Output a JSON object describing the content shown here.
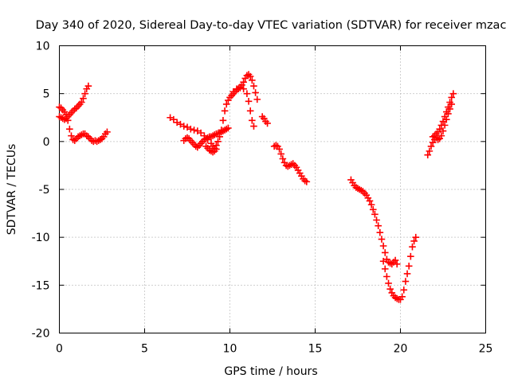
{
  "chart_data": {
    "type": "scatter",
    "title": "Day 340 of 2020, Sidereal Day-to-day VTEC variation (SDTVAR) for receiver mzac",
    "xlabel": "GPS time / hours",
    "ylabel": "SDTVAR / TECUs",
    "xlim": [
      0,
      25
    ],
    "ylim": [
      -20,
      10
    ],
    "xticks": [
      0,
      5,
      10,
      15,
      20,
      25
    ],
    "yticks": [
      -20,
      -15,
      -10,
      -5,
      0,
      5,
      10
    ],
    "xtick_labels": [
      "0",
      "5",
      "10",
      "15",
      "20",
      "25"
    ],
    "ytick_labels": [
      "-20",
      "-15",
      "-10",
      "-5",
      "0",
      "5",
      "10"
    ],
    "grid": true,
    "marker": "+",
    "series": [
      {
        "name": "mzac",
        "color": "#ff0000",
        "segments": [
          [
            [
              0.0,
              2.6
            ],
            [
              0.1,
              2.5
            ],
            [
              0.2,
              2.4
            ],
            [
              0.3,
              2.3
            ],
            [
              0.4,
              2.4
            ],
            [
              0.5,
              2.6
            ],
            [
              0.6,
              2.8
            ],
            [
              0.7,
              3.0
            ],
            [
              0.8,
              3.2
            ],
            [
              0.9,
              3.4
            ],
            [
              1.0,
              3.5
            ],
            [
              1.1,
              3.7
            ],
            [
              1.2,
              3.9
            ],
            [
              1.3,
              4.1
            ],
            [
              1.4,
              4.5
            ],
            [
              1.5,
              5.0
            ],
            [
              1.6,
              5.5
            ],
            [
              1.7,
              5.8
            ]
          ],
          [
            [
              0.0,
              3.6
            ],
            [
              0.1,
              3.5
            ],
            [
              0.2,
              3.3
            ],
            [
              0.3,
              3.1
            ],
            [
              0.4,
              2.8
            ],
            [
              0.5,
              2.2
            ],
            [
              0.6,
              1.3
            ],
            [
              0.7,
              0.6
            ],
            [
              0.8,
              0.2
            ],
            [
              0.9,
              0.1
            ],
            [
              1.0,
              0.3
            ],
            [
              1.1,
              0.5
            ],
            [
              1.2,
              0.6
            ],
            [
              1.3,
              0.7
            ],
            [
              1.4,
              0.8
            ],
            [
              1.5,
              0.8
            ],
            [
              1.6,
              0.6
            ],
            [
              1.7,
              0.5
            ],
            [
              1.8,
              0.3
            ],
            [
              1.9,
              0.1
            ],
            [
              2.0,
              0.0
            ],
            [
              2.1,
              0.1
            ],
            [
              2.2,
              0.0
            ],
            [
              2.3,
              0.1
            ],
            [
              2.4,
              0.2
            ],
            [
              2.5,
              0.3
            ],
            [
              2.6,
              0.5
            ],
            [
              2.7,
              0.8
            ],
            [
              2.8,
              1.0
            ]
          ],
          [
            [
              6.5,
              2.5
            ],
            [
              6.7,
              2.3
            ],
            [
              6.9,
              2.0
            ],
            [
              7.1,
              1.8
            ],
            [
              7.3,
              1.6
            ],
            [
              7.5,
              1.5
            ],
            [
              7.7,
              1.3
            ],
            [
              7.9,
              1.2
            ],
            [
              8.1,
              1.1
            ],
            [
              8.3,
              0.9
            ],
            [
              8.5,
              0.6
            ],
            [
              8.7,
              0.2
            ],
            [
              8.9,
              -0.2
            ],
            [
              9.0,
              -0.5
            ],
            [
              9.1,
              -0.7
            ],
            [
              9.2,
              -0.4
            ],
            [
              9.3,
              0.0
            ],
            [
              9.4,
              0.5
            ],
            [
              9.5,
              1.2
            ],
            [
              9.6,
              2.2
            ],
            [
              9.7,
              3.2
            ],
            [
              9.8,
              3.9
            ],
            [
              9.9,
              4.3
            ],
            [
              10.0,
              4.6
            ],
            [
              10.1,
              4.8
            ],
            [
              10.2,
              5.0
            ],
            [
              10.3,
              5.2
            ],
            [
              10.4,
              5.4
            ],
            [
              10.5,
              5.5
            ],
            [
              10.6,
              5.7
            ],
            [
              10.7,
              5.9
            ],
            [
              10.8,
              6.2
            ],
            [
              10.9,
              6.6
            ],
            [
              11.0,
              6.9
            ],
            [
              11.1,
              7.0
            ],
            [
              11.2,
              6.8
            ],
            [
              11.3,
              6.4
            ],
            [
              11.4,
              5.8
            ],
            [
              11.5,
              5.1
            ],
            [
              11.6,
              4.4
            ]
          ],
          [
            [
              7.3,
              0.1
            ],
            [
              7.4,
              0.3
            ],
            [
              7.5,
              0.4
            ],
            [
              7.6,
              0.3
            ],
            [
              7.7,
              0.1
            ],
            [
              7.8,
              -0.1
            ],
            [
              7.9,
              -0.3
            ],
            [
              8.0,
              -0.5
            ],
            [
              8.1,
              -0.6
            ],
            [
              8.2,
              -0.4
            ],
            [
              8.3,
              -0.2
            ],
            [
              8.4,
              0.0
            ],
            [
              8.5,
              0.2
            ],
            [
              8.6,
              0.3
            ],
            [
              8.7,
              0.4
            ],
            [
              8.8,
              0.5
            ],
            [
              8.9,
              0.5
            ],
            [
              9.0,
              0.6
            ],
            [
              9.1,
              0.7
            ],
            [
              9.2,
              0.8
            ],
            [
              9.3,
              0.8
            ],
            [
              9.4,
              0.9
            ],
            [
              9.5,
              1.0
            ],
            [
              9.6,
              1.1
            ],
            [
              9.7,
              1.2
            ],
            [
              9.8,
              1.3
            ],
            [
              9.9,
              1.4
            ]
          ],
          [
            [
              8.6,
              -0.5
            ],
            [
              8.7,
              -0.7
            ],
            [
              8.8,
              -0.9
            ],
            [
              8.9,
              -1.0
            ],
            [
              9.0,
              -1.1
            ],
            [
              9.1,
              -1.0
            ],
            [
              9.2,
              -0.8
            ]
          ],
          [
            [
              10.2,
              5.2
            ],
            [
              10.4,
              5.5
            ],
            [
              10.6,
              5.6
            ],
            [
              10.8,
              5.5
            ],
            [
              11.0,
              5.0
            ],
            [
              11.1,
              4.2
            ],
            [
              11.2,
              3.2
            ],
            [
              11.3,
              2.2
            ],
            [
              11.4,
              1.6
            ]
          ],
          [
            [
              11.9,
              2.6
            ],
            [
              12.0,
              2.4
            ],
            [
              12.1,
              2.1
            ],
            [
              12.2,
              1.9
            ]
          ],
          [
            [
              12.6,
              -0.5
            ],
            [
              12.7,
              -0.4
            ],
            [
              12.8,
              -0.5
            ],
            [
              12.9,
              -0.8
            ],
            [
              13.0,
              -1.3
            ],
            [
              13.1,
              -1.8
            ],
            [
              13.2,
              -2.2
            ],
            [
              13.3,
              -2.5
            ],
            [
              13.4,
              -2.6
            ],
            [
              13.5,
              -2.5
            ],
            [
              13.6,
              -2.4
            ],
            [
              13.7,
              -2.3
            ],
            [
              13.8,
              -2.5
            ],
            [
              13.9,
              -2.7
            ],
            [
              14.0,
              -3.0
            ],
            [
              14.1,
              -3.3
            ],
            [
              14.2,
              -3.6
            ],
            [
              14.3,
              -3.9
            ],
            [
              14.4,
              -4.1
            ],
            [
              14.5,
              -4.2
            ]
          ],
          [
            [
              17.1,
              -4.0
            ],
            [
              17.2,
              -4.3
            ],
            [
              17.3,
              -4.6
            ],
            [
              17.4,
              -4.8
            ],
            [
              17.5,
              -4.9
            ],
            [
              17.6,
              -5.0
            ],
            [
              17.7,
              -5.1
            ],
            [
              17.8,
              -5.2
            ],
            [
              17.9,
              -5.4
            ],
            [
              18.0,
              -5.6
            ],
            [
              18.1,
              -5.9
            ],
            [
              18.2,
              -6.2
            ],
            [
              18.3,
              -6.6
            ],
            [
              18.4,
              -7.1
            ],
            [
              18.5,
              -7.6
            ],
            [
              18.6,
              -8.2
            ],
            [
              18.7,
              -8.8
            ],
            [
              18.8,
              -9.5
            ],
            [
              18.9,
              -10.2
            ],
            [
              19.0,
              -10.9
            ],
            [
              19.1,
              -11.6
            ],
            [
              19.2,
              -12.3
            ],
            [
              19.3,
              -12.6
            ],
            [
              19.4,
              -12.7
            ],
            [
              19.5,
              -12.8
            ],
            [
              19.6,
              -12.6
            ],
            [
              19.7,
              -12.4
            ],
            [
              19.8,
              -12.8
            ]
          ],
          [
            [
              19.0,
              -12.5
            ],
            [
              19.1,
              -13.3
            ],
            [
              19.2,
              -14.1
            ],
            [
              19.3,
              -14.8
            ],
            [
              19.4,
              -15.4
            ],
            [
              19.5,
              -15.8
            ],
            [
              19.6,
              -16.1
            ],
            [
              19.7,
              -16.3
            ],
            [
              19.8,
              -16.4
            ],
            [
              19.9,
              -16.5
            ],
            [
              20.0,
              -16.5
            ],
            [
              20.1,
              -16.2
            ],
            [
              20.2,
              -15.5
            ],
            [
              20.3,
              -14.6
            ],
            [
              20.4,
              -13.8
            ],
            [
              20.5,
              -13.0
            ],
            [
              20.6,
              -12.0
            ],
            [
              20.7,
              -11.0
            ],
            [
              20.8,
              -10.4
            ],
            [
              20.9,
              -10.0
            ]
          ],
          [
            [
              21.6,
              -1.4
            ],
            [
              21.7,
              -1.0
            ],
            [
              21.8,
              -0.5
            ],
            [
              21.9,
              -0.1
            ],
            [
              22.0,
              0.2
            ],
            [
              22.1,
              0.4
            ],
            [
              22.2,
              0.2
            ],
            [
              22.3,
              0.3
            ],
            [
              22.4,
              0.6
            ],
            [
              22.5,
              1.1
            ],
            [
              22.6,
              1.7
            ],
            [
              22.7,
              2.3
            ],
            [
              22.8,
              2.9
            ],
            [
              22.9,
              3.4
            ],
            [
              23.0,
              3.9
            ]
          ],
          [
            [
              21.9,
              0.5
            ],
            [
              22.0,
              0.6
            ],
            [
              22.1,
              0.8
            ],
            [
              22.2,
              1.0
            ],
            [
              22.3,
              1.3
            ],
            [
              22.4,
              1.7
            ],
            [
              22.5,
              2.1
            ],
            [
              22.6,
              2.6
            ],
            [
              22.7,
              3.1
            ],
            [
              22.8,
              3.6
            ],
            [
              22.9,
              4.1
            ],
            [
              23.0,
              4.6
            ],
            [
              23.1,
              5.0
            ]
          ]
        ]
      }
    ]
  }
}
